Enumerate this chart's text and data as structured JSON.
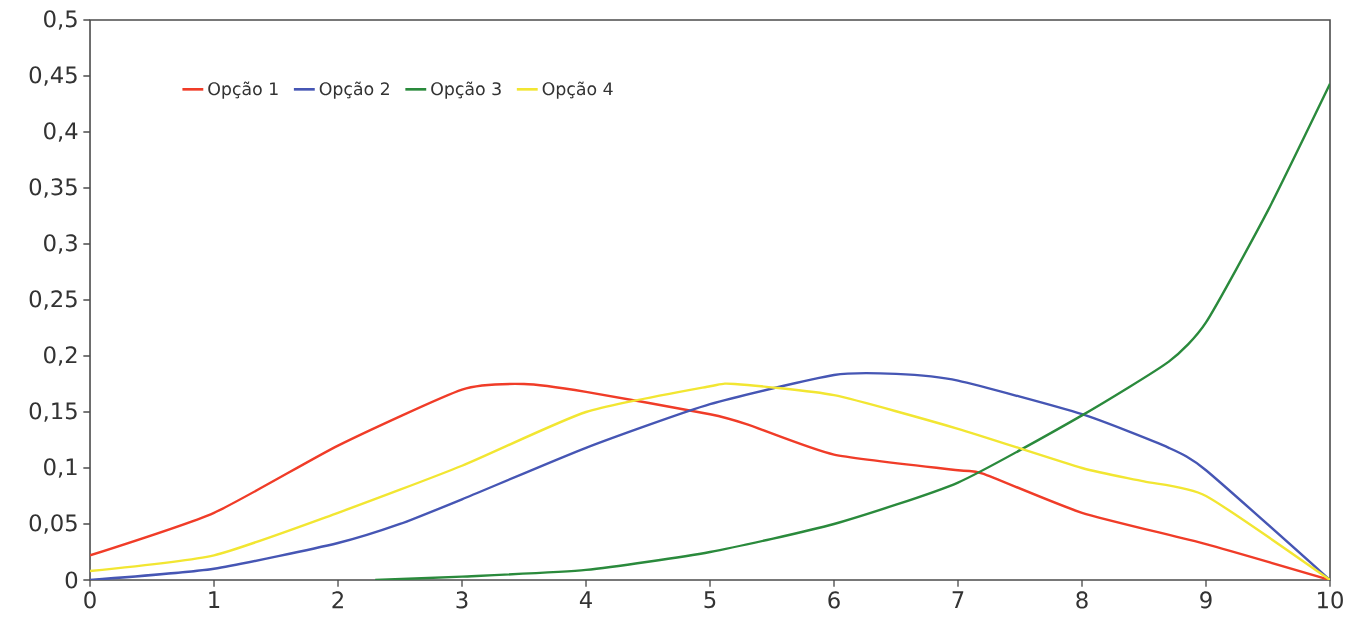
{
  "chart_data": {
    "type": "line",
    "series": [
      {
        "name": "Opção 1",
        "color": "#f03c28",
        "x": [
          0,
          1,
          2,
          3,
          3.5,
          4,
          5,
          5.3,
          6,
          7,
          7.2,
          8,
          9,
          10
        ],
        "values": [
          0.022,
          0.06,
          0.12,
          0.17,
          0.175,
          0.168,
          0.148,
          0.139,
          0.112,
          0.098,
          0.095,
          0.06,
          0.032,
          0
        ]
      },
      {
        "name": "Opção 2",
        "color": "#4656b4",
        "x": [
          0,
          1,
          2,
          2.5,
          3,
          4,
          5,
          6,
          6.5,
          7,
          8,
          8.7,
          9,
          10
        ],
        "values": [
          0,
          0.01,
          0.033,
          0.05,
          0.072,
          0.118,
          0.157,
          0.183,
          0.184,
          0.178,
          0.148,
          0.118,
          0.098,
          0
        ]
      },
      {
        "name": "Opção 3",
        "color": "#2a8a3c",
        "x": [
          2.3,
          3,
          4,
          5,
          6,
          7,
          8,
          8.7,
          9,
          9.5,
          10
        ],
        "values": [
          0,
          0.003,
          0.009,
          0.025,
          0.05,
          0.087,
          0.147,
          0.195,
          0.23,
          0.33,
          0.443
        ]
      },
      {
        "name": "Opção 4",
        "color": "#f2e632",
        "x": [
          0,
          1,
          2,
          3,
          4,
          5,
          5.2,
          6,
          7,
          8,
          8.5,
          9,
          10
        ],
        "values": [
          0.008,
          0.022,
          0.06,
          0.102,
          0.15,
          0.173,
          0.175,
          0.165,
          0.135,
          0.1,
          0.088,
          0.075,
          0
        ]
      }
    ],
    "xlim": [
      0,
      10
    ],
    "xticks": [
      0,
      1,
      2,
      3,
      4,
      5,
      6,
      7,
      8,
      9,
      10
    ],
    "ylim": [
      0,
      0.5
    ],
    "yticks": [
      0,
      {
        "value": 0.05,
        "label": "0,05"
      },
      {
        "value": 0.1,
        "label": "0,1"
      },
      {
        "value": 0.15,
        "label": "0,15"
      },
      {
        "value": 0.2,
        "label": "0,2"
      },
      {
        "value": 0.25,
        "label": "0,25"
      },
      {
        "value": 0.3,
        "label": "0,3"
      },
      {
        "value": 0.35,
        "label": "0,35"
      },
      {
        "value": 0.4,
        "label": "0,4"
      },
      {
        "value": 0.45,
        "label": "0,45"
      },
      {
        "value": 0.5,
        "label": "0,5"
      }
    ],
    "legend": "top left",
    "grid": false,
    "marker": "none",
    "line_style": "solid"
  }
}
